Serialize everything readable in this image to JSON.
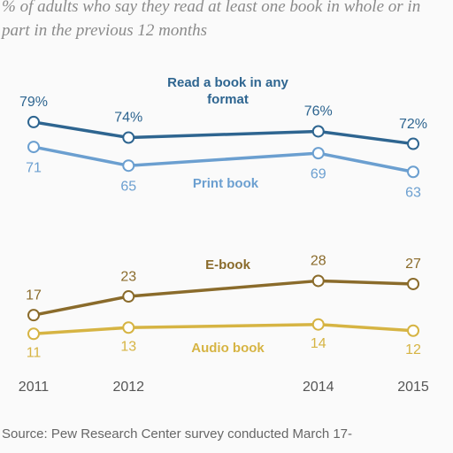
{
  "chart_data": {
    "type": "line",
    "subtitle": "% of adults who say they read at least one book in whole or in part in the previous 12 months",
    "x": [
      2011,
      2012,
      2014,
      2015
    ],
    "xlim": [
      2011,
      2015
    ],
    "xticks": [
      2011,
      2012,
      2014,
      2015
    ],
    "ylim": [
      0,
      100
    ],
    "series": [
      {
        "name": "Read a book in any format",
        "color": "#2e6590",
        "values": [
          79,
          74,
          76,
          72
        ],
        "value_labels": [
          "79%",
          "74%",
          "76%",
          "72%"
        ]
      },
      {
        "name": "Print book",
        "color": "#6b9fd0",
        "values": [
          71,
          65,
          69,
          63
        ]
      },
      {
        "name": "E-book",
        "color": "#8a6b2b",
        "values": [
          17,
          23,
          28,
          27
        ]
      },
      {
        "name": "Audio book",
        "color": "#d6b443",
        "values": [
          11,
          13,
          14,
          12
        ]
      }
    ],
    "source": "Source: Pew Research Center survey conducted March 17-"
  }
}
